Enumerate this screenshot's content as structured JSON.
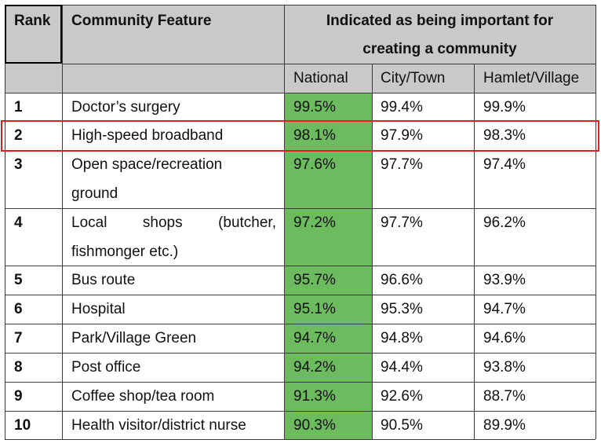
{
  "header": {
    "rank": "Rank",
    "feature": "Community Feature",
    "indicated_line1": "Indicated as being important for",
    "indicated_line2": "creating a community",
    "sub": [
      "National",
      "City/Town",
      "Hamlet/Village"
    ]
  },
  "rows": [
    {
      "rank": "1",
      "feature": [
        "Doctor’s surgery"
      ],
      "national": "99.5%",
      "city": "99.4%",
      "hamlet": "99.9%"
    },
    {
      "rank": "2",
      "feature": [
        "High-speed broadband"
      ],
      "national": "98.1%",
      "city": "97.9%",
      "hamlet": "98.3%"
    },
    {
      "rank": "3",
      "feature": [
        "Open space/recreation",
        "ground"
      ],
      "national": "97.6%",
      "city": "97.7%",
      "hamlet": "97.4%"
    },
    {
      "rank": "4",
      "feature": [
        "Local shops (butcher,",
        "fishmonger etc.)"
      ],
      "national": "97.2%",
      "city": "97.7%",
      "hamlet": "96.2%"
    },
    {
      "rank": "5",
      "feature": [
        "Bus route"
      ],
      "national": "95.7%",
      "city": "96.6%",
      "hamlet": "93.9%"
    },
    {
      "rank": "6",
      "feature": [
        "Hospital"
      ],
      "national": "95.1%",
      "city": "95.3%",
      "hamlet": "94.7%"
    },
    {
      "rank": "7",
      "feature": [
        "Park/Village Green"
      ],
      "national": "94.7%",
      "city": "94.8%",
      "hamlet": "94.6%"
    },
    {
      "rank": "8",
      "feature": [
        "Post office"
      ],
      "national": "94.2%",
      "city": "94.4%",
      "hamlet": "93.8%"
    },
    {
      "rank": "9",
      "feature": [
        "Coffee shop/tea room"
      ],
      "national": "91.3%",
      "city": "92.6%",
      "hamlet": "88.7%"
    },
    {
      "rank": "10",
      "feature": [
        "Health visitor/district nurse"
      ],
      "national": "90.3%",
      "city": "90.5%",
      "hamlet": "89.9%"
    }
  ],
  "highlighted_rank": "2",
  "colors": {
    "header_bg": "#c9c9c9",
    "national_fill": "#6dbb5f",
    "highlight": "#e02020"
  }
}
